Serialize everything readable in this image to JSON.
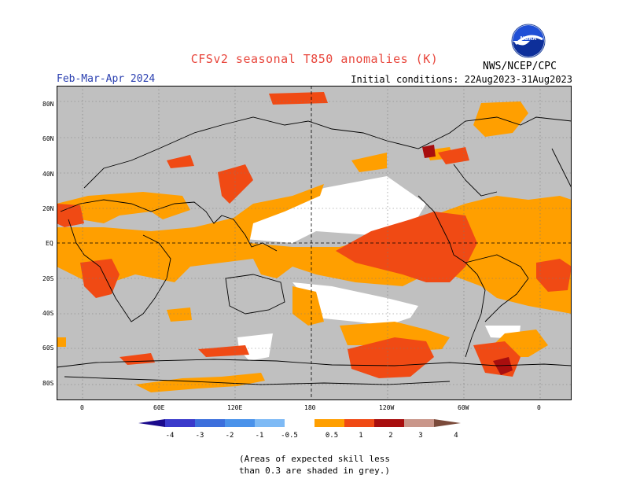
{
  "header": {
    "title": "CFSv2 seasonal T850 anomalies (K)",
    "season": "Feb-Mar-Apr 2024",
    "initial_conditions": "Initial conditions: 22Aug2023-31Aug2023",
    "agency": "NWS/NCEP/CPC",
    "logo_text": "NOAA"
  },
  "map": {
    "lat_labels": [
      "80N",
      "60N",
      "40N",
      "20N",
      "EQ",
      "20S",
      "40S",
      "60S",
      "80S"
    ],
    "lon_labels": [
      "0",
      "60E",
      "120E",
      "180",
      "120W",
      "60W",
      "0"
    ],
    "colors": {
      "skill_mask_grey": "#c0c0c0",
      "neutral_white": "#ffffff",
      "orange_0_5_to_1": "#ff9f00",
      "red_1_to_2": "#f04a14",
      "darkred_2_to_3": "#a80e0e",
      "coast": "#000000"
    }
  },
  "legend": {
    "tick_labels": [
      "-4",
      "-3",
      "-2",
      "-1",
      "-0.5",
      "0.5",
      "1",
      "2",
      "3",
      "4"
    ],
    "colors": [
      "#1a0a8c",
      "#3a3acb",
      "#3c6fdc",
      "#4a92ea",
      "#7ebaf5",
      "#ffffff",
      "#ff9f00",
      "#f04a14",
      "#a80e0e",
      "#c9968a",
      "#7a4a3a"
    ]
  },
  "footnote": {
    "line1": "(Areas of expected skill less",
    "line2": "than 0.3 are shaded in grey.)"
  }
}
